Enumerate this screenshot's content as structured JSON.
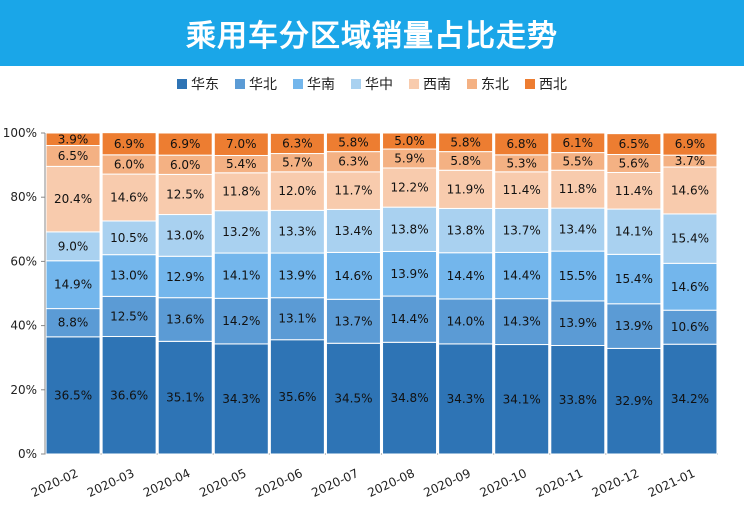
{
  "title": "乘用车分区域销量占比走势",
  "colors": {
    "banner": "#1aa6e8"
  },
  "chart_data": {
    "type": "bar",
    "stacked": true,
    "grid": false,
    "legend_position": "top",
    "ylim": [
      0,
      100
    ],
    "y_ticks": [
      "0%",
      "20%",
      "40%",
      "60%",
      "80%",
      "100%"
    ],
    "y_tick_values": [
      0,
      20,
      40,
      60,
      80,
      100
    ],
    "categories": [
      "2020-02",
      "2020-03",
      "2020-04",
      "2020-05",
      "2020-06",
      "2020-07",
      "2020-08",
      "2020-09",
      "2020-10",
      "2020-11",
      "2020-12",
      "2021-01"
    ],
    "series": [
      {
        "name": "华东",
        "color": "#2e74b5",
        "values": [
          36.5,
          36.6,
          35.1,
          34.3,
          35.6,
          34.5,
          34.8,
          34.3,
          34.1,
          33.8,
          32.9,
          34.2
        ]
      },
      {
        "name": "华北",
        "color": "#5b9bd5",
        "values": [
          8.8,
          12.5,
          13.6,
          14.2,
          13.1,
          13.7,
          14.4,
          14.0,
          14.3,
          13.9,
          13.9,
          10.6
        ]
      },
      {
        "name": "华南",
        "color": "#73b6ec",
        "values": [
          14.9,
          13.0,
          12.9,
          14.1,
          13.9,
          14.6,
          13.9,
          14.4,
          14.4,
          15.5,
          15.4,
          14.6
        ]
      },
      {
        "name": "华中",
        "color": "#a9d1f0",
        "values": [
          9.0,
          10.5,
          13.0,
          13.2,
          13.3,
          13.4,
          13.8,
          13.8,
          13.7,
          13.4,
          14.1,
          15.4
        ]
      },
      {
        "name": "西南",
        "color": "#f8cbad",
        "values": [
          20.4,
          14.6,
          12.5,
          11.8,
          12.0,
          11.7,
          12.2,
          11.9,
          11.4,
          11.8,
          11.4,
          14.6
        ]
      },
      {
        "name": "东北",
        "color": "#f4b183",
        "values": [
          6.5,
          6.0,
          6.0,
          5.4,
          5.7,
          6.3,
          5.9,
          5.8,
          5.3,
          5.5,
          5.6,
          3.7
        ]
      },
      {
        "name": "西北",
        "color": "#ed7d31",
        "values": [
          3.9,
          6.9,
          6.9,
          7.0,
          6.3,
          5.8,
          5.0,
          5.8,
          6.8,
          6.1,
          6.5,
          6.9
        ]
      }
    ]
  }
}
